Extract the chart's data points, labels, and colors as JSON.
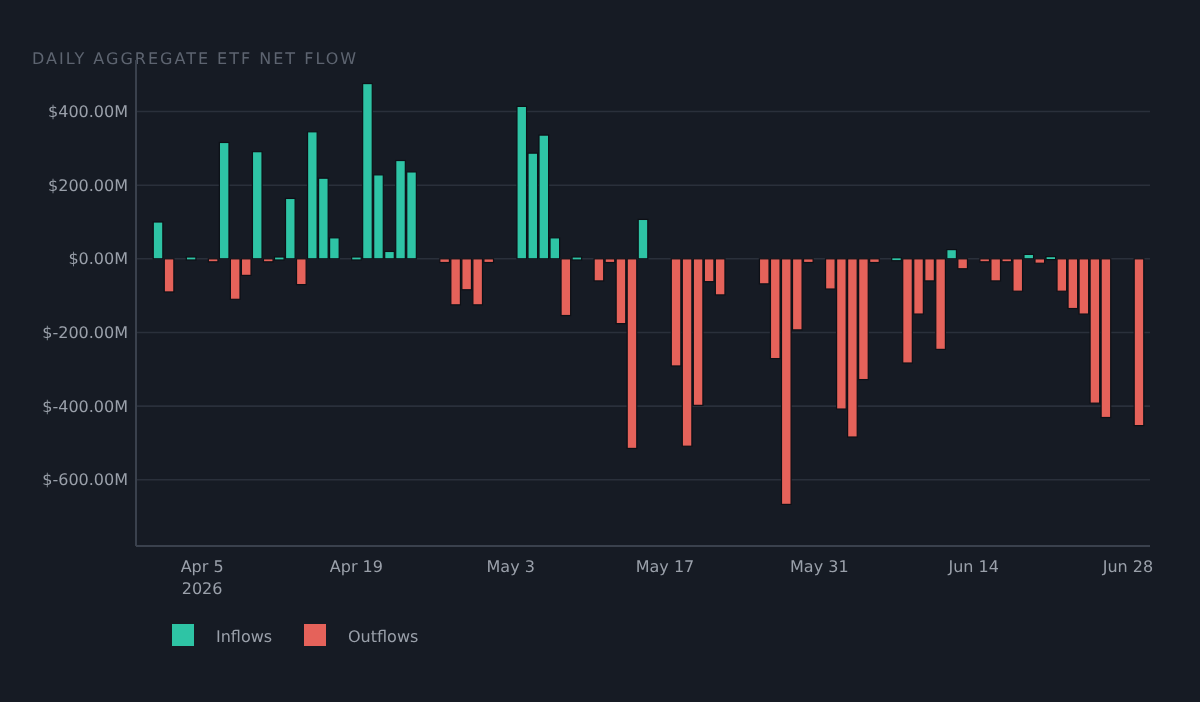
{
  "chart_data": {
    "type": "bar",
    "title": "DAILY AGGREGATE ETF NET FLOW",
    "xlim": [
      "2026-03-30",
      "2026-06-30"
    ],
    "xticks": [
      {
        "value": "2026-04-05",
        "label": "Apr 5\n2026"
      },
      {
        "value": "2026-04-19",
        "label": "Apr 19"
      },
      {
        "value": "2026-05-03",
        "label": "May 3"
      },
      {
        "value": "2026-05-17",
        "label": "May 17"
      },
      {
        "value": "2026-05-31",
        "label": "May 31"
      },
      {
        "value": "2026-06-14",
        "label": "Jun 14"
      },
      {
        "value": "2026-06-28",
        "label": "Jun 28"
      }
    ],
    "ylim": [
      -780,
      540
    ],
    "yticks": [
      {
        "value": -600,
        "label": "$-600.00M"
      },
      {
        "value": -400,
        "label": "$-400.00M"
      },
      {
        "value": -200,
        "label": "$-200.00M"
      },
      {
        "value": 0,
        "label": "$0.00M"
      },
      {
        "value": 200,
        "label": "$200.00M"
      },
      {
        "value": 400,
        "label": "$400.00M"
      }
    ],
    "grid": "y",
    "legend": "bottom left",
    "series": [
      {
        "name": "Inflows",
        "color": "#2ec4a5",
        "x": [
          "2026-04-01",
          "2026-04-04",
          "2026-04-07",
          "2026-04-10",
          "2026-04-12",
          "2026-04-13",
          "2026-04-15",
          "2026-04-16",
          "2026-04-17",
          "2026-04-19",
          "2026-04-20",
          "2026-04-21",
          "2026-04-22",
          "2026-04-23",
          "2026-04-24",
          "2026-05-04",
          "2026-05-05",
          "2026-05-06",
          "2026-05-07",
          "2026-05-09",
          "2026-05-15",
          "2026-06-07",
          "2026-06-12",
          "2026-06-19",
          "2026-06-21"
        ],
        "values": [
          100,
          5,
          316,
          291,
          5,
          164,
          345,
          219,
          57,
          5,
          476,
          228,
          20,
          267,
          236,
          414,
          287,
          336,
          57,
          5,
          107,
          3,
          25,
          12,
          6
        ]
      },
      {
        "name": "Outflows",
        "color": "#e5625a",
        "x": [
          "2026-04-02",
          "2026-04-06",
          "2026-04-08",
          "2026-04-09",
          "2026-04-11",
          "2026-04-14",
          "2026-04-27",
          "2026-04-28",
          "2026-04-29",
          "2026-04-30",
          "2026-05-01",
          "2026-05-08",
          "2026-05-11",
          "2026-05-12",
          "2026-05-13",
          "2026-05-14",
          "2026-05-18",
          "2026-05-19",
          "2026-05-20",
          "2026-05-21",
          "2026-05-22",
          "2026-05-26",
          "2026-05-27",
          "2026-05-28",
          "2026-05-29",
          "2026-05-30",
          "2026-06-01",
          "2026-06-02",
          "2026-06-03",
          "2026-06-04",
          "2026-06-05",
          "2026-06-08",
          "2026-06-09",
          "2026-06-10",
          "2026-06-11",
          "2026-06-13",
          "2026-06-15",
          "2026-06-16",
          "2026-06-17",
          "2026-06-18",
          "2026-06-20",
          "2026-06-22",
          "2026-06-23",
          "2026-06-24",
          "2026-06-25",
          "2026-06-26",
          "2026-06-29"
        ],
        "values": [
          -90,
          -5,
          -110,
          -45,
          -5,
          -70,
          -10,
          -125,
          -84,
          -125,
          -10,
          -154,
          -60,
          -10,
          -176,
          -515,
          -291,
          -509,
          -398,
          -62,
          -98,
          -68,
          -271,
          -667,
          -193,
          -10,
          -82,
          -408,
          -484,
          -328,
          -10,
          -283,
          -150,
          -60,
          -246,
          -27,
          -5,
          -60,
          -5,
          -88,
          -12,
          -88,
          -135,
          -150,
          -392,
          -431,
          -453
        ]
      }
    ]
  }
}
